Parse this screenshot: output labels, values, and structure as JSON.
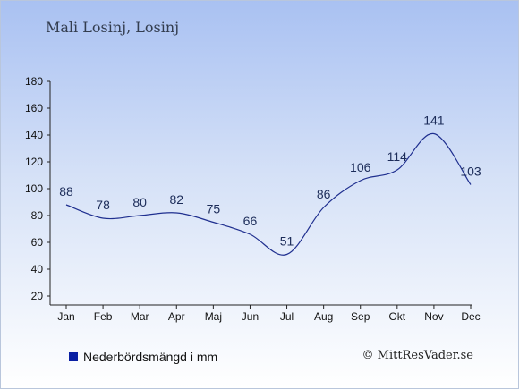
{
  "title": "Mali Losinj, Losinj",
  "legend": {
    "label": "Nederbördsmängd i mm",
    "color": "#0a1fa3"
  },
  "credit": "© MittResVader.se",
  "chart_data": {
    "type": "line",
    "categories": [
      "Jan",
      "Feb",
      "Mar",
      "Apr",
      "Maj",
      "Jun",
      "Jul",
      "Aug",
      "Sep",
      "Okt",
      "Nov",
      "Dec"
    ],
    "series": [
      {
        "name": "Nederbördsmängd i mm",
        "values": [
          88,
          78,
          80,
          82,
          75,
          66,
          51,
          86,
          106,
          114,
          141,
          103
        ],
        "color": "#1f2f8f"
      }
    ],
    "ylim": [
      20,
      180
    ],
    "yticks": [
      20,
      40,
      60,
      80,
      100,
      120,
      140,
      160,
      180
    ],
    "grid": false,
    "legend_position": "bottom-left"
  }
}
